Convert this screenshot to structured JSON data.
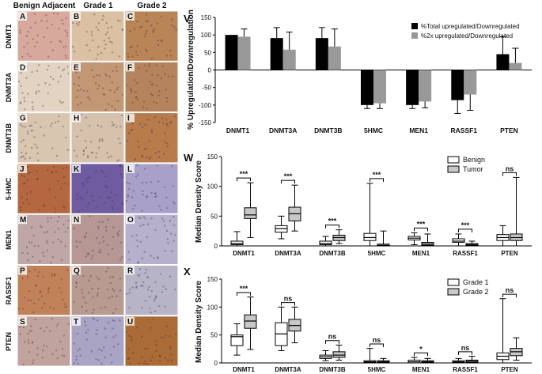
{
  "figure": {
    "histology": {
      "columns": [
        "Benign Adjacent",
        "Grade 1",
        "Grade 2"
      ],
      "rows": [
        "DNMT1",
        "DNMT3A",
        "DNMT3B",
        "5-HMC",
        "MEN1",
        "RASSF1",
        "PTEN"
      ],
      "panel_letters": [
        "A",
        "B",
        "C",
        "D",
        "E",
        "F",
        "G",
        "H",
        "I",
        "J",
        "K",
        "L",
        "M",
        "N",
        "O",
        "P",
        "Q",
        "R",
        "S",
        "T",
        "U"
      ],
      "panel_colors": [
        [
          "#d7a99d",
          "#dcc0a3",
          "#b98456"
        ],
        [
          "#e2d3c2",
          "#c39774",
          "#b5845c"
        ],
        [
          "#d9c6b0",
          "#d6c1ad",
          "#b77b4c"
        ],
        [
          "#b5683f",
          "#6f5ba0",
          "#a9a0c9"
        ],
        [
          "#bfa7a8",
          "#b69793",
          "#b6b0cc"
        ],
        [
          "#c1825a",
          "#b89a90",
          "#b8b4c8"
        ],
        [
          "#c0a39c",
          "#a9a4c4",
          "#aa6b37"
        ]
      ]
    }
  },
  "chart_data": [
    {
      "panel": "V",
      "type": "bar",
      "ylabel": "% Upregulation/Downregulation",
      "ylim": [
        -150,
        150
      ],
      "yticks": [
        "150",
        "100",
        "50",
        "0",
        "-50",
        "-100",
        "-150"
      ],
      "categories": [
        "DNMT1",
        "DNMT3A",
        "DNMT3B",
        "5HMC",
        "MEN1",
        "RASSF1",
        "PTEN"
      ],
      "series": [
        {
          "name": "%Total upregulated/Downregulated",
          "color": "#000000",
          "values": [
            100,
            91,
            91,
            -100,
            -100,
            -86,
            45
          ],
          "err": [
            0,
            30,
            30,
            10,
            10,
            38,
            50
          ]
        },
        {
          "name": "%2x upregulated/Downregulated",
          "color": "#999999",
          "values": [
            95,
            58,
            67,
            -95,
            -90,
            -70,
            20
          ],
          "err": [
            22,
            50,
            50,
            15,
            18,
            45,
            42
          ]
        }
      ],
      "legend": "top-right"
    },
    {
      "panel": "W",
      "type": "box",
      "ylabel": "Median Density Score",
      "ylim": [
        0,
        150
      ],
      "yticks": [
        "150",
        "100",
        "50",
        "0"
      ],
      "categories": [
        "DNMT1",
        "DNMT3A",
        "DNMT3B",
        "5HMC",
        "MEN1",
        "RASSF1",
        "PTEN"
      ],
      "series": [
        {
          "name": "Benign",
          "color": "#ffffff",
          "boxes": [
            [
              0,
              2,
              4,
              8,
              24
            ],
            [
              12,
              23,
              29,
              34,
              50
            ],
            [
              0,
              2,
              4,
              8,
              16
            ],
            [
              0,
              9,
              14,
              21,
              105
            ],
            [
              2,
              10,
              13,
              16,
              22
            ],
            [
              0,
              6,
              8,
              12,
              20
            ],
            [
              0,
              9,
              14,
              19,
              34
            ]
          ]
        },
        {
          "name": "Tumor",
          "color": "#c8c8c8",
          "boxes": [
            [
              14,
              46,
              52,
              64,
              106
            ],
            [
              25,
              42,
              54,
              65,
              102
            ],
            [
              4,
              9,
              14,
              18,
              27
            ],
            [
              0,
              0,
              1,
              3,
              25
            ],
            [
              0,
              1,
              3,
              6,
              20
            ],
            [
              0,
              1,
              2,
              4,
              8
            ],
            [
              0,
              9,
              14,
              20,
              115
            ]
          ]
        }
      ],
      "significance": [
        "***",
        "***",
        "***",
        "***",
        "***",
        "***",
        "ns"
      ],
      "legend": "top-right"
    },
    {
      "panel": "X",
      "type": "box",
      "ylabel": "Median Density Score",
      "ylim": [
        0,
        150
      ],
      "yticks": [
        "150",
        "100",
        "50",
        "0"
      ],
      "categories": [
        "DNMT1",
        "DNMT3A",
        "DNMT3B",
        "5HMC",
        "MEN1",
        "RASSF1",
        "PTEN"
      ],
      "series": [
        {
          "name": "Grade 1",
          "color": "#ffffff",
          "boxes": [
            [
              14,
              31,
              47,
              50,
              70
            ],
            [
              22,
              31,
              52,
              72,
              100
            ],
            [
              4,
              8,
              11,
              14,
              22
            ],
            [
              0,
              1,
              2,
              4,
              26
            ],
            [
              0,
              0,
              2,
              5,
              10
            ],
            [
              0,
              1,
              2,
              4,
              8
            ],
            [
              0,
              6,
              12,
              18,
              115
            ]
          ]
        },
        {
          "name": "Grade 2",
          "color": "#c8c8c8",
          "boxes": [
            [
              24,
              62,
              75,
              86,
              118
            ],
            [
              36,
              57,
              67,
              78,
              100
            ],
            [
              5,
              10,
              14,
              20,
              32
            ],
            [
              0,
              1,
              2,
              4,
              8
            ],
            [
              0,
              1,
              2,
              4,
              8
            ],
            [
              0,
              1,
              3,
              5,
              12
            ],
            [
              5,
              13,
              20,
              26,
              45
            ]
          ]
        }
      ],
      "significance": [
        "***",
        "ns",
        "ns",
        "ns",
        "*",
        "ns",
        "ns"
      ],
      "legend": "top-right"
    }
  ]
}
